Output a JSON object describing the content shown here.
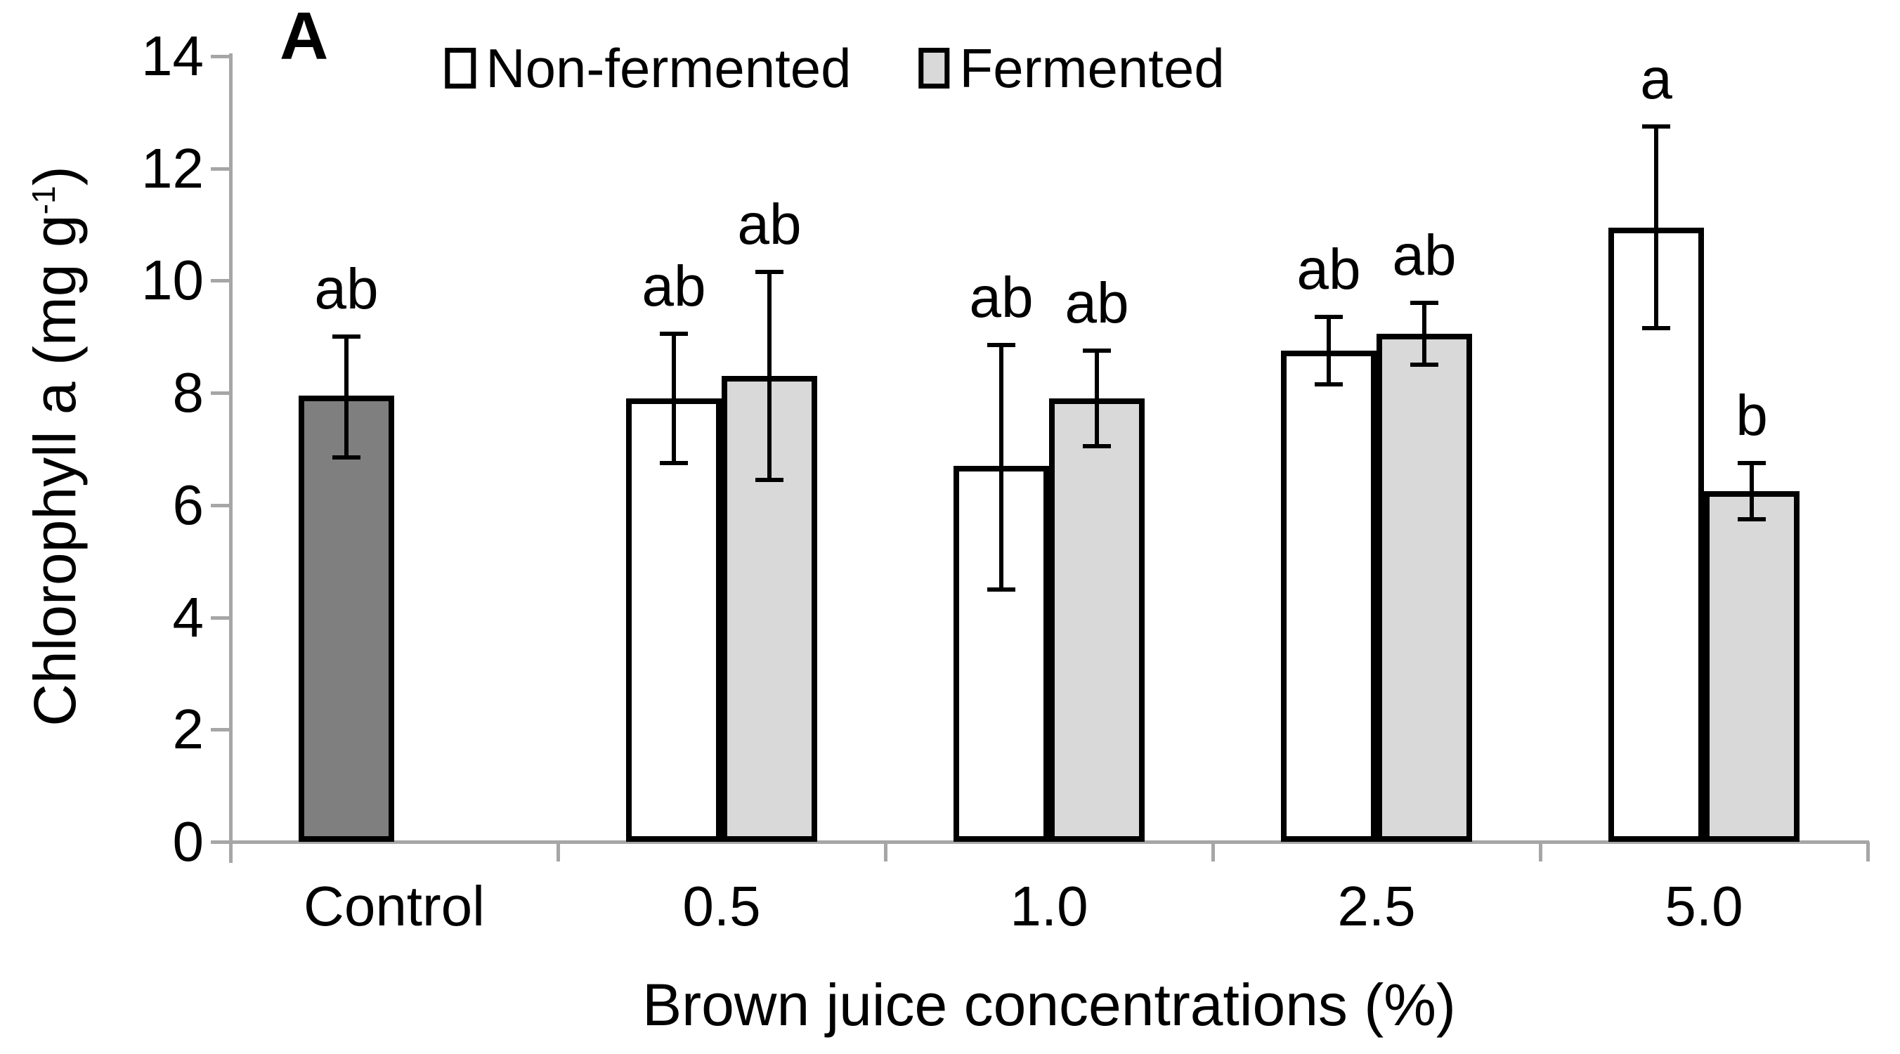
{
  "panel_label": "A",
  "legend": {
    "items": [
      {
        "label": "Non-fermented",
        "fill": "#FFFFFF"
      },
      {
        "label": "Fermented",
        "fill": "#D9D9D9"
      }
    ]
  },
  "chart_data": {
    "type": "bar",
    "title": "",
    "xlabel": "Brown juice concentrations (%)",
    "ylabel": "Chlorophyll a (mg g⁻¹)",
    "ylabel_parts": {
      "main": "Chlorophyll a (mg g",
      "sup": "-1",
      "end": ")"
    },
    "ylim": [
      0,
      14
    ],
    "yticks": [
      0,
      2,
      4,
      6,
      8,
      10,
      12,
      14
    ],
    "grid": false,
    "legend_position": "top-center",
    "categories": [
      "Control",
      "0.5",
      "1.0",
      "2.5",
      "5.0"
    ],
    "series": [
      {
        "name": "Non-fermented",
        "fill": "#FFFFFF",
        "bar_fills": [
          "#7F7F7F",
          "#FFFFFF",
          "#FFFFFF",
          "#FFFFFF",
          "#FFFFFF"
        ],
        "values": [
          7.95,
          7.9,
          6.7,
          8.75,
          10.95
        ],
        "error_upper": [
          9.0,
          9.05,
          8.85,
          9.35,
          12.75
        ],
        "error_lower": [
          6.85,
          6.75,
          4.5,
          8.15,
          9.15
        ],
        "sig_labels": [
          "ab",
          "ab",
          "ab",
          "ab",
          "a"
        ]
      },
      {
        "name": "Fermented",
        "fill": "#D9D9D9",
        "bar_fills": [
          null,
          "#D9D9D9",
          "#D9D9D9",
          "#D9D9D9",
          "#D9D9D9"
        ],
        "values": [
          null,
          8.3,
          7.9,
          9.05,
          6.25
        ],
        "error_upper": [
          null,
          10.15,
          8.75,
          9.6,
          6.75
        ],
        "error_lower": [
          null,
          6.45,
          7.05,
          8.5,
          5.75
        ],
        "sig_labels": [
          null,
          "ab",
          "ab",
          "ab",
          "b"
        ]
      }
    ],
    "control_bar_fill": "#7F7F7F",
    "bar_border_color": "#000000",
    "error_bar_color": "#000000",
    "axis_color": "#A6A6A6",
    "text_color": "#000000"
  }
}
